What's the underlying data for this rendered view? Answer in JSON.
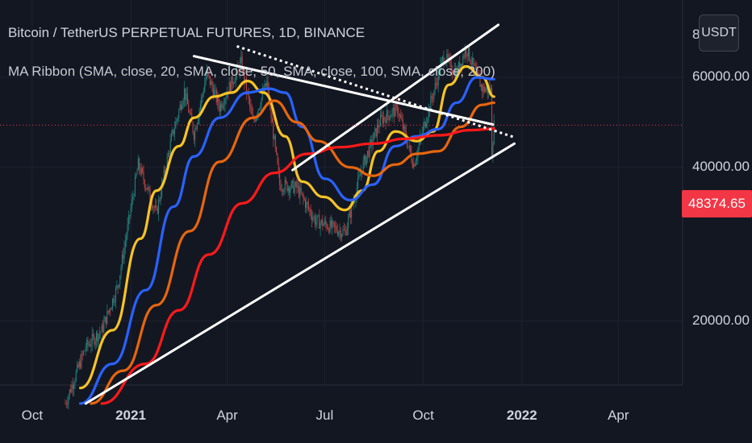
{
  "header": {
    "title": "Bitcoin / TetherUS PERPETUAL FUTURES, 1D, BINANCE",
    "indicator": "MA Ribbon (SMA, close, 20, SMA, close, 50, SMA, close, 100, SMA, close, 200)"
  },
  "price_scale": {
    "currency_button": "USDT",
    "current_price_label": "48374.65",
    "current_price": 48374.65,
    "top_partial_label": "8"
  },
  "colors": {
    "background": "#131722",
    "candle_up": "#26a69a",
    "candle_down": "#ef5350",
    "ma20": "#f7c325",
    "ma50": "#2962ff",
    "ma100": "#e8660d",
    "ma200": "#ff1a1a",
    "trendline": "#ffffff",
    "price_badge": "#f23645"
  },
  "chart_data": {
    "type": "line",
    "title": "Bitcoin / TetherUS PERPETUAL FUTURES, 1D, BINANCE",
    "y_scale": "log",
    "ylim": [
      15000,
      85000
    ],
    "y_ticks": [
      {
        "value": 20000,
        "label": "20000.00"
      },
      {
        "value": 40000,
        "label": "40000.00"
      },
      {
        "value": 60000,
        "label": "60000.00"
      }
    ],
    "xlim": [
      "2020-09-01",
      "2022-05-31"
    ],
    "x_ticks": [
      {
        "date": "2020-10-01",
        "label": "Oct",
        "bold": false
      },
      {
        "date": "2021-01-01",
        "label": "2021",
        "bold": true
      },
      {
        "date": "2021-04-01",
        "label": "Apr",
        "bold": false
      },
      {
        "date": "2021-07-01",
        "label": "Jul",
        "bold": false
      },
      {
        "date": "2021-10-01",
        "label": "Oct",
        "bold": false
      },
      {
        "date": "2022-01-01",
        "label": "2022",
        "bold": true
      },
      {
        "date": "2022-04-01",
        "label": "Apr",
        "bold": false
      }
    ],
    "price_path": [
      [
        "2020-11-01",
        13800
      ],
      [
        "2020-11-20",
        17800
      ],
      [
        "2020-12-05",
        19200
      ],
      [
        "2020-12-20",
        23500
      ],
      [
        "2021-01-08",
        40500
      ],
      [
        "2021-01-25",
        32500
      ],
      [
        "2021-02-08",
        45500
      ],
      [
        "2021-02-20",
        56500
      ],
      [
        "2021-03-01",
        46500
      ],
      [
        "2021-03-13",
        61000
      ],
      [
        "2021-03-25",
        52500
      ],
      [
        "2021-04-14",
        64000
      ],
      [
        "2021-04-25",
        49000
      ],
      [
        "2021-05-08",
        58500
      ],
      [
        "2021-05-20",
        37000
      ],
      [
        "2021-06-05",
        36500
      ],
      [
        "2021-06-22",
        31500
      ],
      [
        "2021-07-20",
        29800
      ],
      [
        "2021-08-05",
        40000
      ],
      [
        "2021-08-22",
        49500
      ],
      [
        "2021-09-07",
        52000
      ],
      [
        "2021-09-22",
        40500
      ],
      [
        "2021-10-05",
        51000
      ],
      [
        "2021-10-20",
        66000
      ],
      [
        "2021-11-01",
        61000
      ],
      [
        "2021-11-10",
        68500
      ],
      [
        "2021-11-25",
        57000
      ],
      [
        "2021-12-03",
        56500
      ],
      [
        "2021-12-04",
        43000
      ],
      [
        "2021-12-06",
        48374
      ]
    ],
    "series": [
      {
        "name": "SMA 20",
        "color": "#f7c325",
        "points": [
          [
            "2020-11-15",
            14800
          ],
          [
            "2020-12-15",
            19200
          ],
          [
            "2021-01-10",
            29000
          ],
          [
            "2021-01-25",
            36000
          ],
          [
            "2021-02-15",
            44000
          ],
          [
            "2021-03-01",
            50000
          ],
          [
            "2021-03-20",
            55000
          ],
          [
            "2021-04-05",
            56000
          ],
          [
            "2021-04-20",
            59000
          ],
          [
            "2021-05-05",
            56000
          ],
          [
            "2021-05-25",
            46000
          ],
          [
            "2021-06-10",
            37500
          ],
          [
            "2021-06-30",
            35000
          ],
          [
            "2021-07-20",
            33000
          ],
          [
            "2021-08-05",
            36000
          ],
          [
            "2021-08-20",
            43000
          ],
          [
            "2021-09-05",
            47000
          ],
          [
            "2021-09-25",
            45000
          ],
          [
            "2021-10-10",
            47000
          ],
          [
            "2021-10-25",
            58000
          ],
          [
            "2021-11-10",
            63000
          ],
          [
            "2021-11-25",
            60000
          ],
          [
            "2021-12-06",
            55000
          ]
        ]
      },
      {
        "name": "SMA 50",
        "color": "#2962ff",
        "points": [
          [
            "2020-11-15",
            13800
          ],
          [
            "2020-12-15",
            16500
          ],
          [
            "2021-01-15",
            23000
          ],
          [
            "2021-02-10",
            33500
          ],
          [
            "2021-03-01",
            42000
          ],
          [
            "2021-03-25",
            50000
          ],
          [
            "2021-04-20",
            56000
          ],
          [
            "2021-05-10",
            57000
          ],
          [
            "2021-05-25",
            56000
          ],
          [
            "2021-06-10",
            48000
          ],
          [
            "2021-07-01",
            38000
          ],
          [
            "2021-07-25",
            34500
          ],
          [
            "2021-08-15",
            37000
          ],
          [
            "2021-09-05",
            44000
          ],
          [
            "2021-09-25",
            46000
          ],
          [
            "2021-10-15",
            47500
          ],
          [
            "2021-11-01",
            53500
          ],
          [
            "2021-11-20",
            60000
          ],
          [
            "2021-12-06",
            59500
          ]
        ]
      },
      {
        "name": "SMA 100",
        "color": "#e8660d",
        "points": [
          [
            "2020-11-25",
            13800
          ],
          [
            "2020-12-25",
            16000
          ],
          [
            "2021-01-25",
            21500
          ],
          [
            "2021-02-25",
            30000
          ],
          [
            "2021-03-25",
            41000
          ],
          [
            "2021-04-25",
            50000
          ],
          [
            "2021-05-15",
            54000
          ],
          [
            "2021-06-05",
            49000
          ],
          [
            "2021-06-25",
            45000
          ],
          [
            "2021-07-25",
            40000
          ],
          [
            "2021-08-15",
            38500
          ],
          [
            "2021-09-05",
            40500
          ],
          [
            "2021-09-25",
            42500
          ],
          [
            "2021-10-15",
            43000
          ],
          [
            "2021-11-05",
            48000
          ],
          [
            "2021-11-25",
            53000
          ],
          [
            "2021-12-06",
            53500
          ]
        ]
      },
      {
        "name": "SMA 200",
        "color": "#ff1a1a",
        "points": [
          [
            "2020-12-05",
            13800
          ],
          [
            "2021-01-15",
            16500
          ],
          [
            "2021-02-15",
            21000
          ],
          [
            "2021-03-15",
            27000
          ],
          [
            "2021-04-15",
            34000
          ],
          [
            "2021-05-15",
            39000
          ],
          [
            "2021-06-15",
            42500
          ],
          [
            "2021-07-15",
            43800
          ],
          [
            "2021-08-15",
            44500
          ],
          [
            "2021-09-15",
            45500
          ],
          [
            "2021-10-15",
            46200
          ],
          [
            "2021-11-15",
            47300
          ],
          [
            "2021-12-06",
            47600
          ]
        ]
      }
    ],
    "trendlines": [
      {
        "style": "solid",
        "from": [
          "2021-03-01",
          66000
        ],
        "to": [
          "2021-12-05",
          48500
        ]
      },
      {
        "style": "dotted",
        "from": [
          "2021-04-10",
          69000
        ],
        "to": [
          "2021-12-25",
          45800
        ]
      },
      {
        "style": "solid",
        "from": [
          "2020-11-20",
          13800
        ],
        "to": [
          "2021-12-25",
          44500
        ]
      },
      {
        "style": "solid",
        "from": [
          "2021-06-01",
          39500
        ],
        "to": [
          "2021-12-10",
          76000
        ]
      }
    ]
  }
}
